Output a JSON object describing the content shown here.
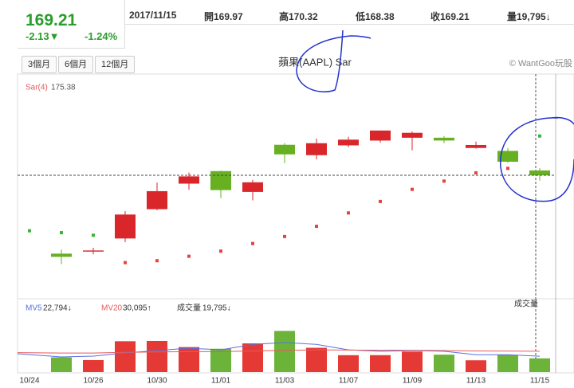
{
  "header": {
    "price": "169.21",
    "change": "-2.13▼",
    "change_pct": "-1.24%",
    "date": "2017/11/15",
    "open": "開169.97",
    "high": "高170.32",
    "low": "低168.38",
    "close": "收169.21",
    "volume": "量19,795↓"
  },
  "buttons": [
    "3個月",
    "6個月",
    "12個月"
  ],
  "chart_data": [
    {
      "type": "candlestick",
      "title": "蘋果(AAPL) Sar",
      "credit": "© WantGoo玩股",
      "categories": [
        "10/24",
        null,
        "10/26",
        null,
        "10/30",
        null,
        "11/01",
        null,
        "11/03",
        null,
        "11/07",
        null,
        "11/09",
        null,
        "11/13",
        null,
        "11/15"
      ],
      "open": [
        null,
        156.91,
        157.23,
        159.29,
        163.89,
        167.9,
        169.87,
        166.6,
        174.0,
        172.37,
        173.91,
        174.66,
        175.11,
        175.11,
        173.5,
        173.04,
        169.97
      ],
      "high": [
        null,
        157.55,
        157.83,
        163.6,
        168.07,
        169.65,
        169.94,
        168.5,
        174.26,
        174.99,
        175.25,
        176.24,
        176.1,
        175.38,
        174.5,
        173.48,
        170.32
      ],
      "low": [
        null,
        155.27,
        156.78,
        158.7,
        163.72,
        166.94,
        165.61,
        165.28,
        171.12,
        171.72,
        173.6,
        174.33,
        173.14,
        174.27,
        173.4,
        171.18,
        168.38
      ],
      "close": [
        null,
        156.41,
        157.41,
        163.05,
        166.72,
        169.04,
        166.89,
        168.11,
        172.5,
        174.25,
        174.81,
        176.24,
        175.88,
        174.67,
        173.97,
        171.34,
        169.21
      ],
      "up_color": "#d9262b",
      "down_color": "#66b022",
      "sar": {
        "name": "Sar(4)",
        "values": [
          160.5,
          160.2,
          159.8,
          155.5,
          155.8,
          156.5,
          157.3,
          158.5,
          159.6,
          161.2,
          163.3,
          165.1,
          167.0,
          168.3,
          169.6,
          170.3,
          175.38
        ],
        "colors": [
          "#3cb33c",
          "#3cb33c",
          "#3cb33c",
          "#e8413f",
          "#e8413f",
          "#e8413f",
          "#e8413f",
          "#e8413f",
          "#e8413f",
          "#e8413f",
          "#e8413f",
          "#e8413f",
          "#e8413f",
          "#e8413f",
          "#e8413f",
          "#e8413f",
          "#3cb33c"
        ]
      },
      "ylim": [
        150.2,
        184.6
      ]
    },
    {
      "type": "volume",
      "title": "成交量",
      "values": [
        null,
        21207,
        17283,
        44455,
        44860,
        36046,
        33637,
        41393,
        59398,
        35026,
        24362,
        24409,
        29533,
        25131,
        16983,
        24783,
        19795
      ],
      "value_label": "19,795↓",
      "series": [
        {
          "name": "MV5",
          "color": "#5a6fe0",
          "values": [
            26400,
            21800,
            23000,
            27600,
            31000,
            34500,
            32000,
            40000,
            42500,
            40000,
            32000,
            30000,
            31000,
            30000,
            25000,
            25000,
            22794
          ],
          "value_label": "22,794↓"
        },
        {
          "name": "MV20",
          "color": "#e85a5a",
          "values": [
            28000,
            27500,
            27500,
            28500,
            29000,
            29500,
            29500,
            30500,
            31500,
            32000,
            31800,
            31500,
            31500,
            31000,
            30500,
            30300,
            30095
          ],
          "value_label": "30,095↑"
        }
      ],
      "ylim": [
        0,
        100000
      ]
    }
  ]
}
